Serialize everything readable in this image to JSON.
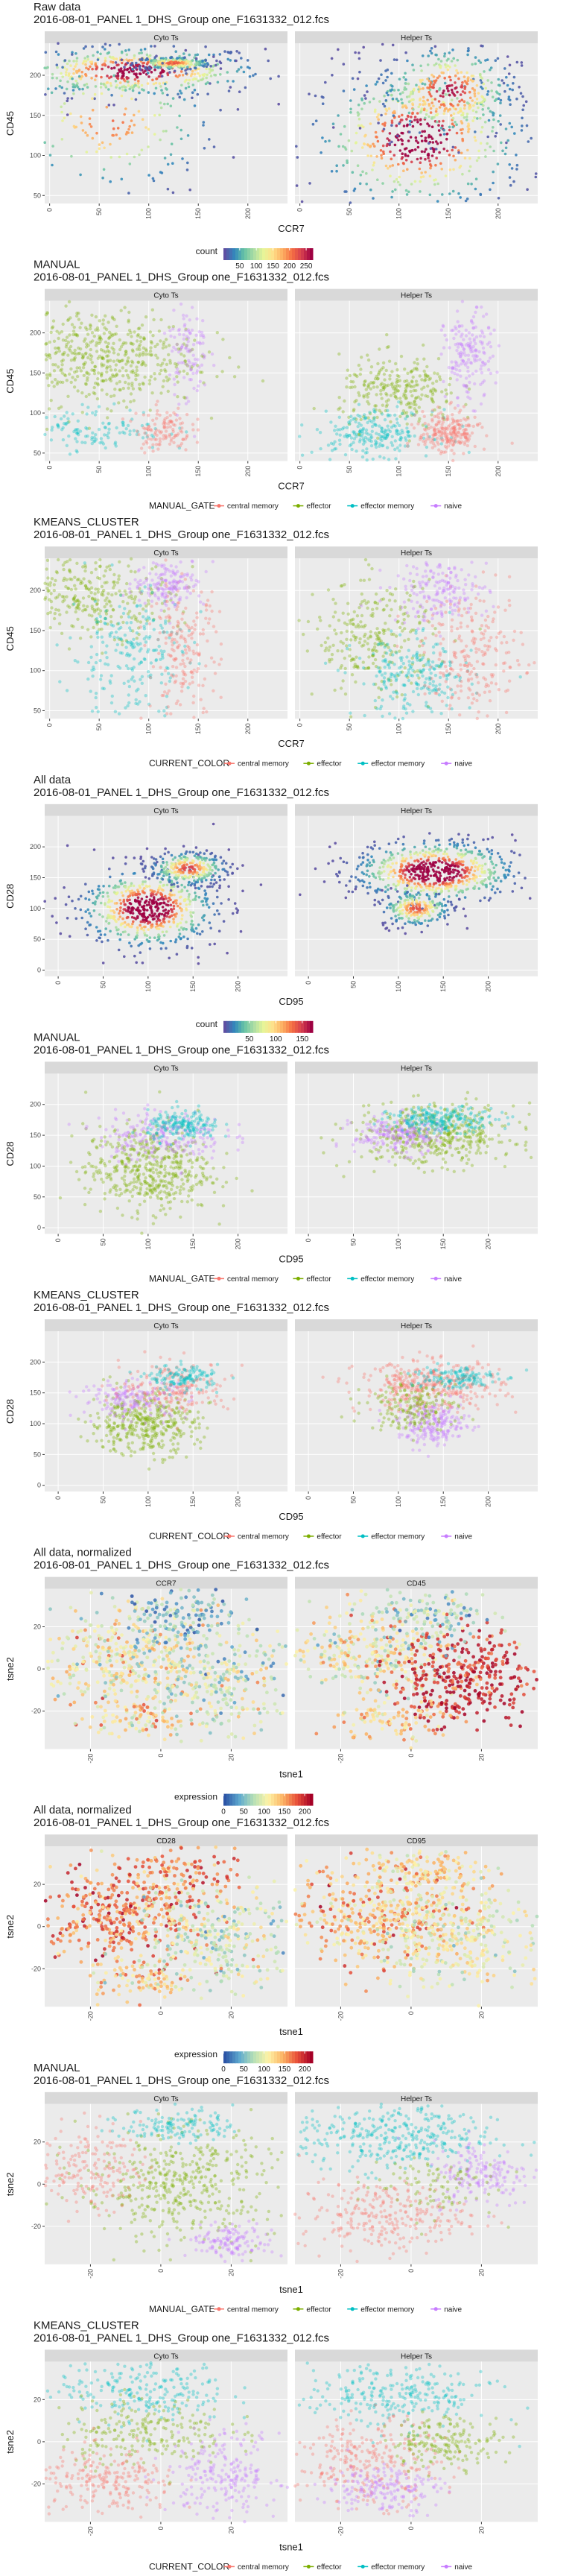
{
  "colors": {
    "central memory": "#f8766d",
    "effector": "#7cae00",
    "effector memory": "#00bfc4",
    "naive": "#c77cff",
    "panel_bg": "#ebebeb",
    "strip_bg": "#d9d9d9"
  },
  "chart_data": [
    {
      "type": "heatmap",
      "title": "Raw data",
      "subtitle": "2016-08-01_PANEL 1_DHS_Group one_F1631332_012.fcs",
      "panels": [
        "Cyto Ts",
        "Helper Ts"
      ],
      "xlabel": "CCR7",
      "ylabel": "CD45",
      "xlim": [
        -5,
        240
      ],
      "ylim": [
        40,
        240
      ],
      "xticks": [
        0,
        50,
        100,
        150,
        200
      ],
      "yticks": [
        50,
        100,
        150,
        200
      ],
      "color": "density",
      "legend": {
        "title": "count",
        "ticks": [
          "50",
          "100",
          "150",
          "200",
          "250"
        ],
        "range": [
          1,
          270
        ]
      },
      "clusters": [
        [
          {
            "x": 85,
            "y": 205,
            "sx": 65,
            "sy": 16,
            "w": 0.55
          },
          {
            "x": 125,
            "y": 215,
            "sx": 20,
            "sy": 4,
            "w": 0.25
          },
          {
            "x": 60,
            "y": 140,
            "sx": 55,
            "sy": 45,
            "w": 0.2
          }
        ],
        [
          {
            "x": 120,
            "y": 120,
            "sx": 55,
            "sy": 45,
            "w": 0.6
          },
          {
            "x": 150,
            "y": 180,
            "sx": 35,
            "sy": 30,
            "w": 0.4
          }
        ]
      ]
    },
    {
      "type": "scatter",
      "title": "MANUAL",
      "subtitle": "2016-08-01_PANEL 1_DHS_Group one_F1631332_012.fcs",
      "panels": [
        "Cyto Ts",
        "Helper Ts"
      ],
      "xlabel": "CCR7",
      "ylabel": "CD45",
      "xlim": [
        -5,
        240
      ],
      "ylim": [
        40,
        240
      ],
      "xticks": [
        0,
        50,
        100,
        150,
        200
      ],
      "yticks": [
        50,
        100,
        150,
        200
      ],
      "legend": {
        "title": "MANUAL_GATE",
        "entries": [
          "central memory",
          "effector",
          "effector memory",
          "naive"
        ]
      },
      "clusters": [
        [
          {
            "x": 50,
            "y": 170,
            "sx": 50,
            "sy": 30,
            "w": 0.6,
            "c": "effector"
          },
          {
            "x": 40,
            "y": 80,
            "sx": 38,
            "sy": 14,
            "w": 0.15,
            "c": "effector memory"
          },
          {
            "x": 115,
            "y": 80,
            "sx": 14,
            "sy": 14,
            "w": 0.13,
            "c": "central memory"
          },
          {
            "x": 140,
            "y": 180,
            "sx": 10,
            "sy": 35,
            "w": 0.12,
            "c": "naive"
          }
        ],
        [
          {
            "x": 100,
            "y": 125,
            "sx": 30,
            "sy": 22,
            "w": 0.3,
            "c": "effector"
          },
          {
            "x": 75,
            "y": 75,
            "sx": 30,
            "sy": 14,
            "w": 0.25,
            "c": "effector memory"
          },
          {
            "x": 150,
            "y": 75,
            "sx": 15,
            "sy": 14,
            "w": 0.25,
            "c": "central memory"
          },
          {
            "x": 170,
            "y": 170,
            "sx": 12,
            "sy": 28,
            "w": 0.2,
            "c": "naive"
          }
        ]
      ]
    },
    {
      "type": "scatter",
      "title": "KMEANS_CLUSTER",
      "subtitle": "2016-08-01_PANEL 1_DHS_Group one_F1631332_012.fcs",
      "panels": [
        "Cyto Ts",
        "Helper Ts"
      ],
      "xlabel": "CCR7",
      "ylabel": "CD45",
      "xlim": [
        -5,
        240
      ],
      "ylim": [
        40,
        240
      ],
      "xticks": [
        0,
        50,
        100,
        150,
        200
      ],
      "yticks": [
        50,
        100,
        150,
        200
      ],
      "legend": {
        "title": "CURRENT_COLOR",
        "entries": [
          "central memory",
          "effector",
          "effector memory",
          "naive"
        ]
      },
      "clusters": [
        [
          {
            "x": 45,
            "y": 195,
            "sx": 40,
            "sy": 25,
            "w": 0.35,
            "c": "effector"
          },
          {
            "x": 80,
            "y": 120,
            "sx": 30,
            "sy": 40,
            "w": 0.25,
            "c": "effector memory"
          },
          {
            "x": 135,
            "y": 120,
            "sx": 18,
            "sy": 45,
            "w": 0.22,
            "c": "central memory"
          },
          {
            "x": 120,
            "y": 210,
            "sx": 18,
            "sy": 15,
            "w": 0.18,
            "c": "naive"
          }
        ],
        [
          {
            "x": 75,
            "y": 140,
            "sx": 30,
            "sy": 35,
            "w": 0.3,
            "c": "effector"
          },
          {
            "x": 115,
            "y": 90,
            "sx": 30,
            "sy": 25,
            "w": 0.25,
            "c": "effector memory"
          },
          {
            "x": 175,
            "y": 120,
            "sx": 25,
            "sy": 40,
            "w": 0.25,
            "c": "central memory"
          },
          {
            "x": 140,
            "y": 200,
            "sx": 25,
            "sy": 20,
            "w": 0.2,
            "c": "naive"
          }
        ]
      ]
    },
    {
      "type": "heatmap",
      "title": "All data",
      "subtitle": "2016-08-01_PANEL 1_DHS_Group one_F1631332_012.fcs",
      "panels": [
        "Cyto Ts",
        "Helper Ts"
      ],
      "xlabel": "CD95",
      "ylabel": "CD28",
      "xlim": [
        -15,
        255
      ],
      "ylim": [
        -10,
        250
      ],
      "xticks": [
        0,
        50,
        100,
        150,
        200
      ],
      "yticks": [
        0,
        50,
        100,
        150,
        200
      ],
      "color": "density",
      "legend": {
        "title": "count",
        "ticks": [
          "50",
          "100",
          "150"
        ],
        "range": [
          1,
          170
        ]
      },
      "clusters": [
        [
          {
            "x": 100,
            "y": 100,
            "sx": 38,
            "sy": 32,
            "w": 0.7
          },
          {
            "x": 145,
            "y": 165,
            "sx": 22,
            "sy": 14,
            "w": 0.3
          }
        ],
        [
          {
            "x": 140,
            "y": 160,
            "sx": 45,
            "sy": 25,
            "w": 0.75
          },
          {
            "x": 120,
            "y": 100,
            "sx": 20,
            "sy": 15,
            "w": 0.25
          }
        ]
      ]
    },
    {
      "type": "scatter",
      "title": "MANUAL",
      "subtitle": "2016-08-01_PANEL 1_DHS_Group one_F1631332_012.fcs",
      "panels": [
        "Cyto Ts",
        "Helper Ts"
      ],
      "xlabel": "CD95",
      "ylabel": "CD28",
      "xlim": [
        -15,
        255
      ],
      "ylim": [
        -10,
        250
      ],
      "xticks": [
        0,
        50,
        100,
        150,
        200
      ],
      "yticks": [
        0,
        50,
        100,
        150,
        200
      ],
      "legend": {
        "title": "MANUAL_GATE",
        "entries": [
          "central memory",
          "effector",
          "effector memory",
          "naive"
        ]
      },
      "clusters": [
        [
          {
            "x": 100,
            "y": 95,
            "sx": 35,
            "sy": 35,
            "w": 0.55,
            "c": "effector"
          },
          {
            "x": 115,
            "y": 150,
            "sx": 35,
            "sy": 20,
            "w": 0.25,
            "c": "naive"
          },
          {
            "x": 140,
            "y": 165,
            "sx": 20,
            "sy": 12,
            "w": 0.2,
            "c": "effector memory"
          }
        ],
        [
          {
            "x": 140,
            "y": 150,
            "sx": 45,
            "sy": 25,
            "w": 0.5,
            "c": "effector"
          },
          {
            "x": 100,
            "y": 150,
            "sx": 25,
            "sy": 15,
            "w": 0.25,
            "c": "naive"
          },
          {
            "x": 150,
            "y": 175,
            "sx": 30,
            "sy": 10,
            "w": 0.25,
            "c": "effector memory"
          }
        ]
      ]
    },
    {
      "type": "scatter",
      "title": "KMEANS_CLUSTER",
      "subtitle": "2016-08-01_PANEL 1_DHS_Group one_F1631332_012.fcs",
      "panels": [
        "Cyto Ts",
        "Helper Ts"
      ],
      "xlabel": "CD95",
      "ylabel": "CD28",
      "xlim": [
        -15,
        255
      ],
      "ylim": [
        -10,
        250
      ],
      "xticks": [
        0,
        50,
        100,
        150,
        200
      ],
      "yticks": [
        0,
        50,
        100,
        150,
        200
      ],
      "legend": {
        "title": "CURRENT_COLOR",
        "entries": [
          "central memory",
          "effector",
          "effector memory",
          "naive"
        ]
      },
      "clusters": [
        [
          {
            "x": 95,
            "y": 100,
            "sx": 30,
            "sy": 25,
            "w": 0.45,
            "c": "effector"
          },
          {
            "x": 85,
            "y": 140,
            "sx": 30,
            "sy": 15,
            "w": 0.2,
            "c": "naive"
          },
          {
            "x": 130,
            "y": 160,
            "sx": 30,
            "sy": 20,
            "w": 0.2,
            "c": "central memory"
          },
          {
            "x": 140,
            "y": 175,
            "sx": 20,
            "sy": 10,
            "w": 0.15,
            "c": "effector memory"
          }
        ],
        [
          {
            "x": 135,
            "y": 160,
            "sx": 40,
            "sy": 20,
            "w": 0.4,
            "c": "central memory"
          },
          {
            "x": 140,
            "y": 100,
            "sx": 20,
            "sy": 18,
            "w": 0.25,
            "c": "naive"
          },
          {
            "x": 115,
            "y": 130,
            "sx": 25,
            "sy": 20,
            "w": 0.2,
            "c": "effector"
          },
          {
            "x": 160,
            "y": 175,
            "sx": 25,
            "sy": 10,
            "w": 0.15,
            "c": "effector memory"
          }
        ]
      ]
    },
    {
      "type": "scatter",
      "title": "All data, normalized",
      "subtitle": "2016-08-01_PANEL 1_DHS_Group one_F1631332_012.fcs",
      "panels": [
        "CCR7",
        "CD45"
      ],
      "xlabel": "tsne1",
      "ylabel": "tsne2",
      "xlim": [
        -33,
        36
      ],
      "ylim": [
        -38,
        38
      ],
      "xticks": [
        -20,
        0,
        20
      ],
      "yticks": [
        -20,
        0,
        20
      ],
      "color": "expression",
      "legend": {
        "title": "expression",
        "ticks": [
          "0",
          "50",
          "100",
          "150",
          "200"
        ],
        "range": [
          0,
          220
        ]
      },
      "clusters": [
        [
          {
            "x": -12,
            "y": 5,
            "sx": 12,
            "sy": 12,
            "w": 0.4,
            "v": 110,
            "vs": 30
          },
          {
            "x": 15,
            "y": -5,
            "sx": 12,
            "sy": 12,
            "w": 0.35,
            "v": 90,
            "vs": 30
          },
          {
            "x": 5,
            "y": 25,
            "sx": 8,
            "sy": 6,
            "w": 0.15,
            "v": 40,
            "vs": 30
          },
          {
            "x": -5,
            "y": -25,
            "sx": 8,
            "sy": 5,
            "w": 0.1,
            "v": 130,
            "vs": 30
          }
        ],
        [
          {
            "x": -12,
            "y": 8,
            "sx": 12,
            "sy": 11,
            "w": 0.35,
            "v": 110,
            "vs": 30
          },
          {
            "x": 15,
            "y": -5,
            "sx": 10,
            "sy": 12,
            "w": 0.4,
            "v": 200,
            "vs": 20
          },
          {
            "x": 5,
            "y": 25,
            "sx": 8,
            "sy": 6,
            "w": 0.15,
            "v": 70,
            "vs": 30
          },
          {
            "x": -5,
            "y": -25,
            "sx": 8,
            "sy": 5,
            "w": 0.1,
            "v": 130,
            "vs": 30
          }
        ]
      ]
    },
    {
      "type": "scatter",
      "title": "All data, normalized",
      "subtitle": "2016-08-01_PANEL 1_DHS_Group one_F1631332_012.fcs",
      "panels": [
        "CD28",
        "CD95"
      ],
      "xlabel": "tsne1",
      "ylabel": "tsne2",
      "xlim": [
        -33,
        36
      ],
      "ylim": [
        -38,
        38
      ],
      "xticks": [
        -20,
        0,
        20
      ],
      "yticks": [
        -20,
        0,
        20
      ],
      "color": "expression",
      "legend": {
        "title": "expression",
        "ticks": [
          "0",
          "50",
          "100",
          "150",
          "200"
        ],
        "range": [
          0,
          220
        ]
      },
      "clusters": [
        [
          {
            "x": -12,
            "y": 5,
            "sx": 12,
            "sy": 12,
            "w": 0.45,
            "v": 170,
            "vs": 25
          },
          {
            "x": 15,
            "y": -5,
            "sx": 12,
            "sy": 12,
            "w": 0.35,
            "v": 90,
            "vs": 25
          },
          {
            "x": 5,
            "y": 25,
            "sx": 8,
            "sy": 6,
            "w": 0.1,
            "v": 160,
            "vs": 25
          },
          {
            "x": -5,
            "y": -25,
            "sx": 8,
            "sy": 5,
            "w": 0.1,
            "v": 130,
            "vs": 25
          }
        ],
        [
          {
            "x": -10,
            "y": 5,
            "sx": 14,
            "sy": 12,
            "w": 0.5,
            "v": 140,
            "vs": 30
          },
          {
            "x": 15,
            "y": -5,
            "sx": 12,
            "sy": 12,
            "w": 0.35,
            "v": 100,
            "vs": 20
          },
          {
            "x": 5,
            "y": 25,
            "sx": 8,
            "sy": 6,
            "w": 0.15,
            "v": 130,
            "vs": 25
          }
        ]
      ]
    },
    {
      "type": "scatter",
      "title": "MANUAL",
      "subtitle": "2016-08-01_PANEL 1_DHS_Group one_F1631332_012.fcs",
      "panels": [
        "Cyto Ts",
        "Helper Ts"
      ],
      "xlabel": "tsne1",
      "ylabel": "tsne2",
      "xlim": [
        -33,
        36
      ],
      "ylim": [
        -38,
        38
      ],
      "xticks": [
        -20,
        0,
        20
      ],
      "yticks": [
        -20,
        0,
        20
      ],
      "legend": {
        "title": "MANUAL_GATE",
        "entries": [
          "central memory",
          "effector",
          "effector memory",
          "naive"
        ]
      },
      "clusters": [
        [
          {
            "x": 5,
            "y": 0,
            "sx": 14,
            "sy": 13,
            "w": 0.5,
            "c": "effector"
          },
          {
            "x": -20,
            "y": 8,
            "sx": 7,
            "sy": 10,
            "w": 0.2,
            "c": "central memory"
          },
          {
            "x": 5,
            "y": 28,
            "sx": 8,
            "sy": 4,
            "w": 0.15,
            "c": "effector memory"
          },
          {
            "x": 20,
            "y": -27,
            "sx": 6,
            "sy": 4,
            "w": 0.15,
            "c": "naive"
          }
        ],
        [
          {
            "x": -5,
            "y": 22,
            "sx": 14,
            "sy": 8,
            "w": 0.4,
            "c": "effector memory"
          },
          {
            "x": 20,
            "y": 5,
            "sx": 7,
            "sy": 8,
            "w": 0.2,
            "c": "naive"
          },
          {
            "x": -8,
            "y": -15,
            "sx": 12,
            "sy": 8,
            "w": 0.3,
            "c": "central memory"
          },
          {
            "x": 5,
            "y": 0,
            "sx": 10,
            "sy": 8,
            "w": 0.1,
            "c": "effector"
          }
        ]
      ]
    },
    {
      "type": "scatter",
      "title": "KMEANS_CLUSTER",
      "subtitle": "2016-08-01_PANEL 1_DHS_Group one_F1631332_012.fcs",
      "panels": [
        "Cyto Ts",
        "Helper Ts"
      ],
      "xlabel": "tsne1",
      "ylabel": "tsne2",
      "xlim": [
        -33,
        36
      ],
      "ylim": [
        -38,
        38
      ],
      "xticks": [
        -20,
        0,
        20
      ],
      "yticks": [
        -20,
        0,
        20
      ],
      "legend": {
        "title": "CURRENT_COLOR",
        "entries": [
          "central memory",
          "effector",
          "effector memory",
          "naive"
        ]
      },
      "clusters": [
        [
          {
            "x": -5,
            "y": 25,
            "sx": 12,
            "sy": 8,
            "w": 0.25,
            "c": "effector memory"
          },
          {
            "x": -5,
            "y": 5,
            "sx": 12,
            "sy": 8,
            "w": 0.25,
            "c": "effector"
          },
          {
            "x": -15,
            "y": -20,
            "sx": 10,
            "sy": 8,
            "w": 0.25,
            "c": "central memory"
          },
          {
            "x": 18,
            "y": -15,
            "sx": 8,
            "sy": 10,
            "w": 0.25,
            "c": "naive"
          }
        ],
        [
          {
            "x": -5,
            "y": 22,
            "sx": 14,
            "sy": 8,
            "w": 0.3,
            "c": "effector memory"
          },
          {
            "x": -12,
            "y": -10,
            "sx": 10,
            "sy": 10,
            "w": 0.3,
            "c": "central memory"
          },
          {
            "x": 10,
            "y": 0,
            "sx": 8,
            "sy": 6,
            "w": 0.2,
            "c": "effector"
          },
          {
            "x": -8,
            "y": -22,
            "sx": 8,
            "sy": 6,
            "w": 0.2,
            "c": "naive"
          }
        ]
      ]
    }
  ]
}
